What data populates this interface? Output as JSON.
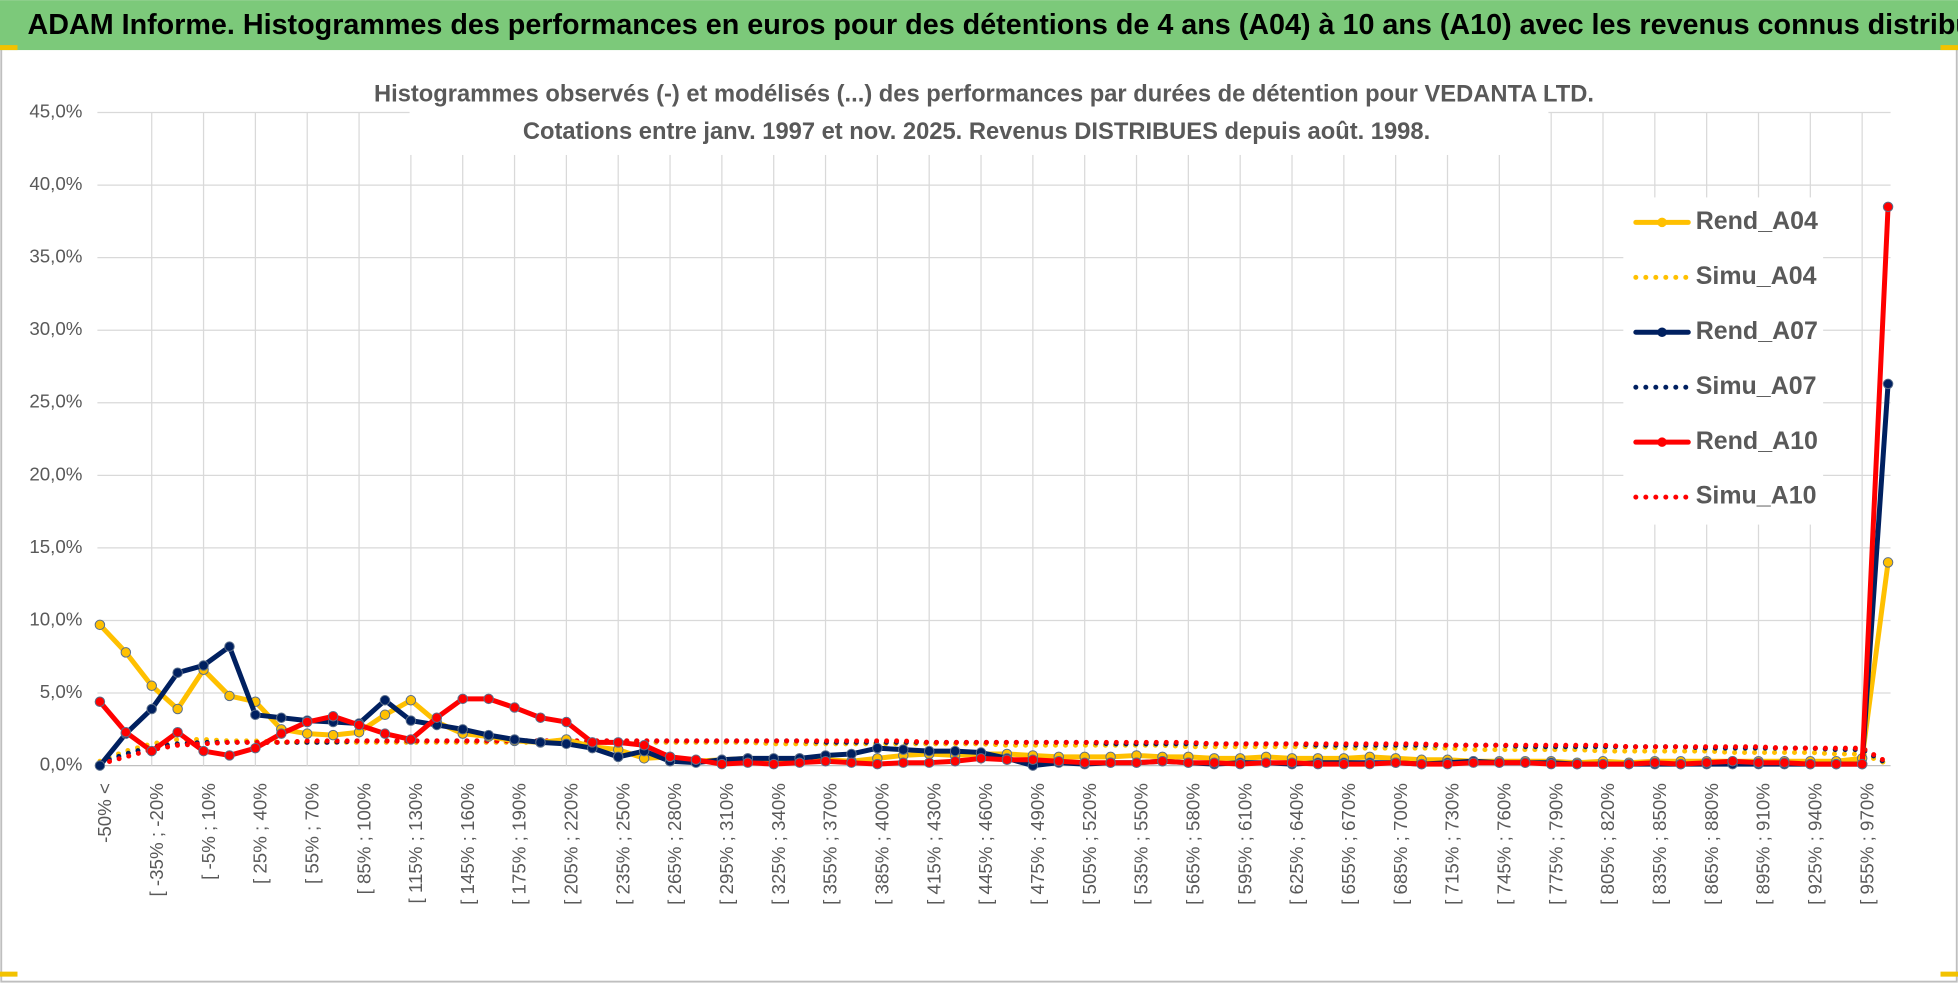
{
  "header": "ADAM Informe. Histogrammes des performances en euros pour des détentions de 4 ans (A04) à 10 ans (A10) avec les revenus connus distribués",
  "chart_data": {
    "type": "line",
    "title": [
      "Histogrammes observés (-) et modélisés (...) des performances par durées de détention pour VEDANTA LTD.",
      "Cotations entre janv. 1997 et nov. 2025. Revenus DISTRIBUES depuis août. 1998."
    ],
    "categories": [
      "-50% <",
      null,
      "[ -35% ; -20%",
      null,
      "[ -5% ; 10%",
      null,
      "[ 25% ; 40%",
      null,
      "[ 55% ; 70%",
      null,
      "[ 85% ; 100%",
      null,
      "[ 115% ; 130%",
      null,
      "[ 145% ; 160%",
      null,
      "[ 175% ; 190%",
      null,
      "[ 205% ; 220%",
      null,
      "[ 235% ; 250%",
      null,
      "[ 265% ; 280%",
      null,
      "[ 295% ; 310%",
      null,
      "[ 325% ; 340%",
      null,
      "[ 355% ; 370%",
      null,
      "[ 385% ; 400%",
      null,
      "[ 415% ; 430%",
      null,
      "[ 445% ; 460%",
      null,
      "[ 475% ; 490%",
      null,
      "[ 505% ; 520%",
      null,
      "[ 535% ; 550%",
      null,
      "[ 565% ; 580%",
      null,
      "[ 595% ; 610%",
      null,
      "[ 625% ; 640%",
      null,
      "[ 655% ; 670%",
      null,
      "[ 685% ; 700%",
      null,
      "[ 715% ; 730%",
      null,
      "[ 745% ; 760%",
      null,
      "[ 775% ; 790%",
      null,
      "[ 805% ; 820%",
      null,
      "[ 835% ; 850%",
      null,
      "[ 865% ; 880%",
      null,
      "[ 895% ; 910%",
      null,
      "[ 925% ; 940%",
      null,
      "[ 955% ; 970%",
      null
    ],
    "series": [
      {
        "name": "Rend_A04",
        "color": "#ffc000",
        "dotted": false,
        "values": [
          9.7,
          7.8,
          5.5,
          3.9,
          6.6,
          4.8,
          4.4,
          2.5,
          2.2,
          2.1,
          2.3,
          3.5,
          4.5,
          3.0,
          2.2,
          2.0,
          1.7,
          1.6,
          1.8,
          1.3,
          1.1,
          0.5,
          0.6,
          0.3,
          0.4,
          0.5,
          0.4,
          0.5,
          0.4,
          0.3,
          0.5,
          0.7,
          0.8,
          0.7,
          0.8,
          0.8,
          0.7,
          0.6,
          0.6,
          0.6,
          0.7,
          0.6,
          0.6,
          0.5,
          0.5,
          0.6,
          0.5,
          0.5,
          0.5,
          0.6,
          0.5,
          0.4,
          0.4,
          0.3,
          0.3,
          0.3,
          0.3,
          0.2,
          0.3,
          0.2,
          0.3,
          0.3,
          0.3,
          0.3,
          0.3,
          0.3,
          0.3,
          0.3,
          0.5,
          14.0
        ]
      },
      {
        "name": "Simu_A04",
        "color": "#ffc000",
        "dotted": true,
        "values": [
          0.3,
          1.0,
          1.5,
          1.8,
          1.8,
          1.7,
          1.7,
          1.6,
          1.6,
          1.6,
          1.6,
          1.6,
          1.6,
          1.6,
          1.6,
          1.6,
          1.6,
          1.6,
          1.6,
          1.6,
          1.6,
          1.6,
          1.6,
          1.6,
          1.6,
          1.6,
          1.5,
          1.5,
          1.5,
          1.5,
          1.5,
          1.5,
          1.5,
          1.5,
          1.5,
          1.4,
          1.4,
          1.4,
          1.4,
          1.4,
          1.4,
          1.4,
          1.3,
          1.3,
          1.3,
          1.3,
          1.3,
          1.3,
          1.2,
          1.2,
          1.2,
          1.2,
          1.2,
          1.1,
          1.1,
          1.1,
          1.1,
          1.1,
          1.0,
          1.0,
          1.0,
          1.0,
          1.0,
          0.9,
          0.9,
          0.9,
          0.9,
          0.8,
          0.8,
          0.1
        ]
      },
      {
        "name": "Rend_A07",
        "color": "#002060",
        "dotted": false,
        "values": [
          0.0,
          2.2,
          3.9,
          6.4,
          6.9,
          8.2,
          3.5,
          3.3,
          3.1,
          3.0,
          2.9,
          4.5,
          3.1,
          2.8,
          2.5,
          2.1,
          1.8,
          1.6,
          1.5,
          1.2,
          0.6,
          1.0,
          0.3,
          0.2,
          0.4,
          0.5,
          0.5,
          0.5,
          0.7,
          0.8,
          1.2,
          1.1,
          1.0,
          1.0,
          0.9,
          0.5,
          0.0,
          0.2,
          0.1,
          0.2,
          0.2,
          0.3,
          0.2,
          0.1,
          0.2,
          0.2,
          0.1,
          0.2,
          0.2,
          0.2,
          0.2,
          0.1,
          0.2,
          0.3,
          0.2,
          0.2,
          0.2,
          0.1,
          0.1,
          0.1,
          0.1,
          0.1,
          0.1,
          0.1,
          0.1,
          0.1,
          0.1,
          0.1,
          0.1,
          26.3
        ]
      },
      {
        "name": "Simu_A07",
        "color": "#002060",
        "dotted": true,
        "values": [
          0.2,
          0.8,
          1.3,
          1.5,
          1.6,
          1.6,
          1.6,
          1.6,
          1.6,
          1.6,
          1.7,
          1.7,
          1.7,
          1.7,
          1.7,
          1.7,
          1.7,
          1.7,
          1.7,
          1.7,
          1.7,
          1.7,
          1.7,
          1.7,
          1.7,
          1.7,
          1.7,
          1.7,
          1.6,
          1.6,
          1.6,
          1.6,
          1.6,
          1.6,
          1.6,
          1.6,
          1.6,
          1.6,
          1.6,
          1.5,
          1.5,
          1.5,
          1.5,
          1.5,
          1.5,
          1.5,
          1.5,
          1.4,
          1.4,
          1.4,
          1.4,
          1.4,
          1.4,
          1.4,
          1.4,
          1.3,
          1.3,
          1.3,
          1.3,
          1.3,
          1.3,
          1.3,
          1.2,
          1.2,
          1.2,
          1.2,
          1.2,
          1.1,
          1.1,
          0.1
        ]
      },
      {
        "name": "Rend_A10",
        "color": "#ff0000",
        "dotted": false,
        "values": [
          4.4,
          2.3,
          1.0,
          2.3,
          1.0,
          0.7,
          1.2,
          2.2,
          3.0,
          3.4,
          2.8,
          2.2,
          1.8,
          3.3,
          4.6,
          4.6,
          4.0,
          3.3,
          3.0,
          1.6,
          1.6,
          1.4,
          0.6,
          0.4,
          0.1,
          0.2,
          0.1,
          0.2,
          0.3,
          0.2,
          0.1,
          0.2,
          0.2,
          0.3,
          0.5,
          0.4,
          0.4,
          0.3,
          0.2,
          0.2,
          0.2,
          0.3,
          0.2,
          0.2,
          0.1,
          0.2,
          0.2,
          0.1,
          0.1,
          0.1,
          0.2,
          0.1,
          0.1,
          0.2,
          0.2,
          0.2,
          0.1,
          0.1,
          0.1,
          0.1,
          0.2,
          0.1,
          0.2,
          0.3,
          0.2,
          0.2,
          0.1,
          0.1,
          0.1,
          38.5
        ]
      },
      {
        "name": "Simu_A10",
        "color": "#ff0000",
        "dotted": true,
        "values": [
          0.1,
          0.6,
          1.1,
          1.4,
          1.5,
          1.6,
          1.6,
          1.6,
          1.7,
          1.7,
          1.7,
          1.7,
          1.7,
          1.7,
          1.7,
          1.7,
          1.7,
          1.7,
          1.7,
          1.7,
          1.7,
          1.7,
          1.7,
          1.7,
          1.7,
          1.7,
          1.7,
          1.7,
          1.7,
          1.7,
          1.7,
          1.7,
          1.6,
          1.6,
          1.6,
          1.6,
          1.6,
          1.6,
          1.6,
          1.6,
          1.6,
          1.6,
          1.6,
          1.5,
          1.5,
          1.5,
          1.5,
          1.5,
          1.5,
          1.5,
          1.5,
          1.5,
          1.4,
          1.4,
          1.4,
          1.4,
          1.4,
          1.4,
          1.4,
          1.3,
          1.3,
          1.3,
          1.3,
          1.3,
          1.3,
          1.2,
          1.2,
          1.2,
          1.2,
          0.2
        ]
      }
    ],
    "ylim": [
      0,
      45
    ],
    "yticks": [
      {
        "value": 0,
        "label": "0,0%"
      },
      {
        "value": 5,
        "label": "5,0%"
      },
      {
        "value": 10,
        "label": "10,0%"
      },
      {
        "value": 15,
        "label": "15,0%"
      },
      {
        "value": 20,
        "label": "20,0%"
      },
      {
        "value": 25,
        "label": "25,0%"
      },
      {
        "value": 30,
        "label": "30,0%"
      },
      {
        "value": 35,
        "label": "35,0%"
      },
      {
        "value": 40,
        "label": "40,0%"
      },
      {
        "value": 45,
        "label": "45,0%"
      }
    ],
    "grid": true,
    "legend": "top-right"
  }
}
